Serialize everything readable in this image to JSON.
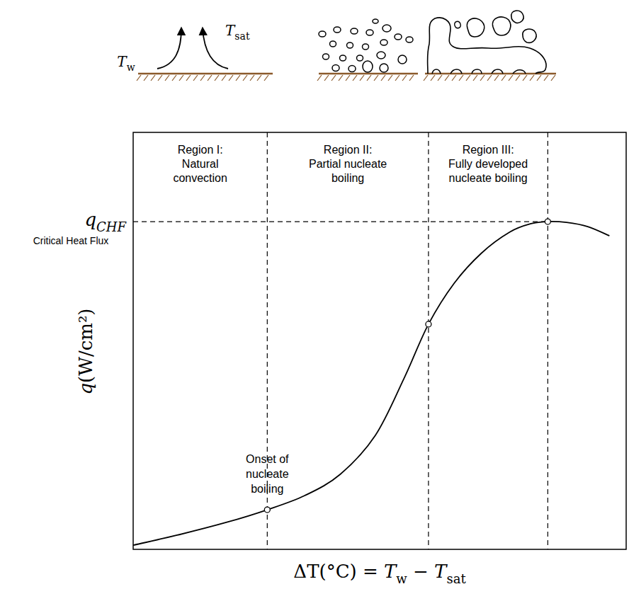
{
  "chart_data": {
    "type": "line",
    "tick_labels": false,
    "grid": false,
    "xlim": [
      0,
      100
    ],
    "ylim": [
      0,
      100
    ],
    "xlabel": [
      {
        "t": "ΔT"
      },
      {
        "t": "(°C) = "
      },
      {
        "t": "T",
        "i": true
      },
      {
        "t": "w",
        "sub": true
      },
      {
        "t": " − "
      },
      {
        "t": "T",
        "i": true
      },
      {
        "t": "sat",
        "sub": true
      }
    ],
    "ylabel": [
      {
        "t": "q",
        "i": true
      },
      {
        "t": "(W/cm²)"
      }
    ],
    "x": [
      0,
      8.9,
      19.0,
      27.2,
      34.8,
      42.0,
      49.1,
      54.9,
      59.9,
      65.1,
      70.7,
      76.4,
      80.7,
      84.1,
      87.9,
      92.2,
      96.6
    ],
    "series": [
      {
        "color": "#000000",
        "values": [
          1.0,
          3.4,
          6.5,
          9.5,
          12.9,
          18.0,
          27.3,
          40.9,
          54.0,
          63.8,
          71.1,
          76.1,
          78.1,
          78.6,
          78.4,
          77.4,
          75.2
        ]
      }
    ],
    "regions": [
      {
        "x": [
          0,
          27.2
        ],
        "label": [
          "Region I:",
          "Natural",
          "convection"
        ]
      },
      {
        "x": [
          27.2,
          59.9
        ],
        "label": [
          "Region II:",
          "Partial nucleate",
          "boiling"
        ]
      },
      {
        "x": [
          59.9,
          84.1
        ],
        "label": [
          "Region III:",
          "Fully developed",
          "nucleate boiling"
        ]
      }
    ],
    "points": [
      {
        "x": 27.2,
        "y": 9.5,
        "label": [
          "Onset of",
          "nucleate",
          "boiling"
        ]
      },
      {
        "x": 59.9,
        "y": 54.0
      },
      {
        "x": 84.1,
        "y": 78.6,
        "symbol": [
          {
            "t": "q",
            "i": true
          },
          {
            "t": "CHF",
            "sub": true,
            "i": true
          }
        ],
        "caption": "Critical Heat Flux"
      }
    ],
    "illustration": {
      "wall": [
        {
          "t": "T",
          "i": true
        },
        {
          "t": "w",
          "sub": true
        }
      ],
      "bulk": [
        {
          "t": "T",
          "i": true
        },
        {
          "t": "sat",
          "sub": true
        }
      ]
    }
  }
}
